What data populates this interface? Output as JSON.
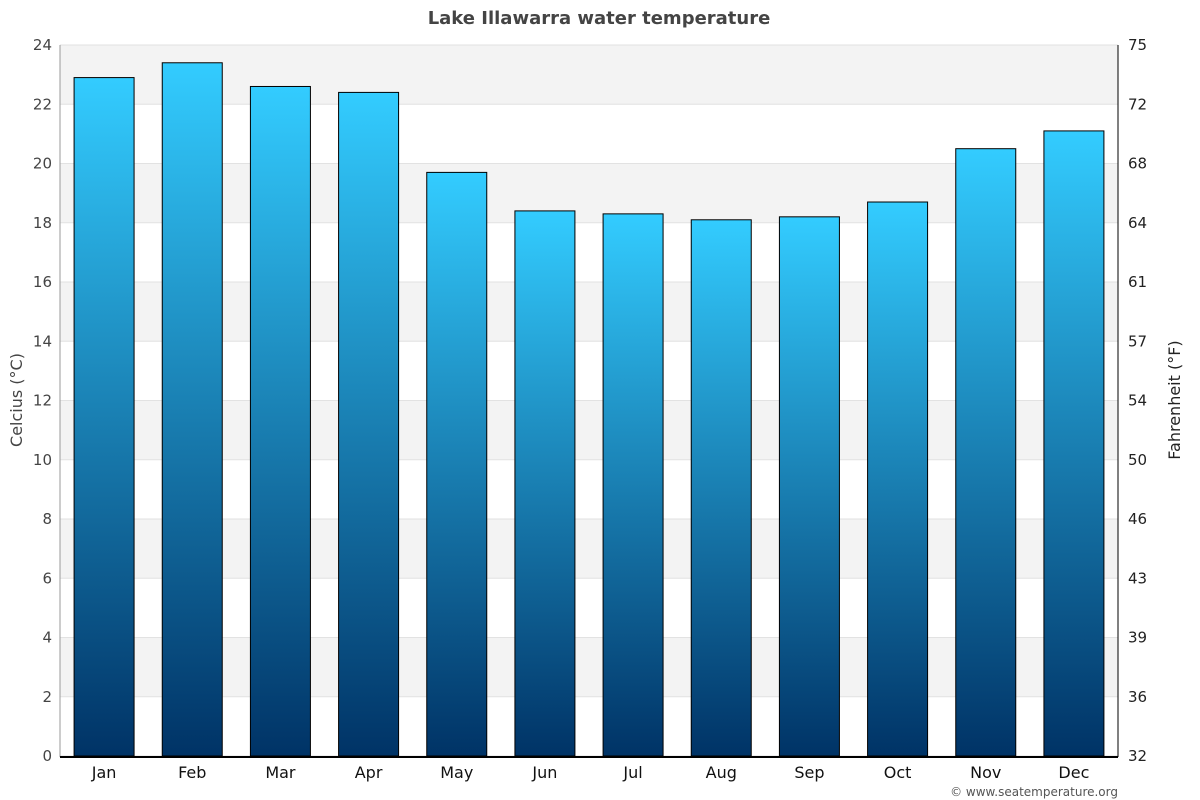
{
  "chart_data": {
    "type": "bar",
    "title": "Lake Illawarra water temperature",
    "ylabel": "Celcius (°C)",
    "y2label": "Fahrenheit (°F)",
    "categories": [
      "Jan",
      "Feb",
      "Mar",
      "Apr",
      "May",
      "Jun",
      "Jul",
      "Aug",
      "Sep",
      "Oct",
      "Nov",
      "Dec"
    ],
    "values": [
      22.9,
      23.4,
      22.6,
      22.4,
      19.7,
      18.4,
      18.3,
      18.1,
      18.2,
      18.7,
      20.5,
      21.1
    ],
    "ylim": [
      0,
      24
    ],
    "yticks": [
      0,
      2,
      4,
      6,
      8,
      10,
      12,
      14,
      16,
      18,
      20,
      22,
      24
    ],
    "y2ticks": [
      "32",
      "36",
      "39",
      "43",
      "46",
      "50",
      "54",
      "57",
      "61",
      "64",
      "68",
      "72",
      "75"
    ],
    "grid": true,
    "colors": {
      "bar_top": "#33ccff",
      "bar_bottom": "#003366",
      "band": "#f3f3f3"
    }
  },
  "footer": {
    "credit": "© www.seatemperature.org"
  }
}
